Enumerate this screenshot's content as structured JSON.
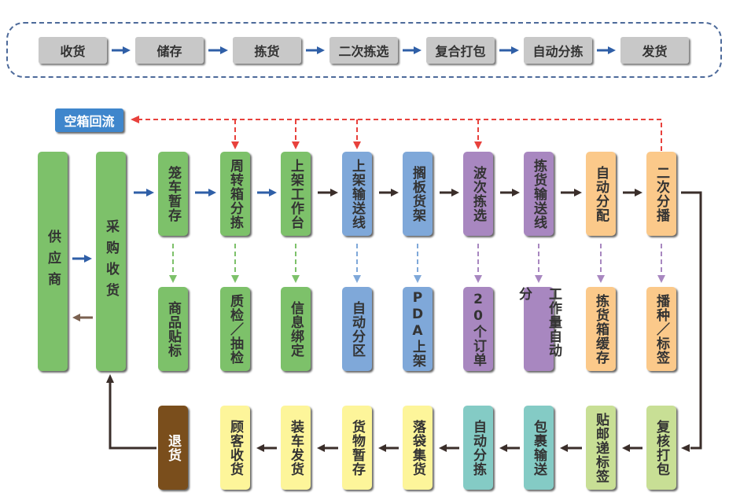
{
  "header_flow": [
    "收货",
    "储存",
    "拣货",
    "二次拣选",
    "复合打包",
    "自动分拣",
    "发货"
  ],
  "empty_box_return": "空箱回流",
  "supplier": "供应商",
  "purchase_receiving": "采购收货",
  "top_row": [
    "笼车暂存",
    "周转箱分拣",
    "上架工作台",
    "上架输送线",
    "搁板货架",
    "波次拣选",
    "拣货输送线",
    "自动分配",
    "二次分播"
  ],
  "middle_row": [
    "商品贴标",
    "质检／抽检",
    "信息绑定",
    "自动分区",
    "PDA上架",
    "20个订单",
    "工作量自动分",
    "拣货箱缓存",
    "播种／标签"
  ],
  "bottom_row": [
    "退货",
    "顾客收货",
    "装车发货",
    "货物暂存",
    "落袋集货",
    "自动分拣",
    "包裹输送",
    "贴邮递标签",
    "复核打包"
  ],
  "colors": {
    "green": "#7dc16a",
    "blue": "#7fa8d9",
    "purple": "#a887c0",
    "orange": "#fbc98a",
    "yellow": "#fdf59a",
    "teal": "#84cbc5",
    "light_green": "#c8df95",
    "brown": "#7a4e1c",
    "empty_return_blue": "#3f86cc",
    "return_arrow_red": "#e8413c",
    "flow_arrow_blue": "#2f5fa7",
    "flow_arrow_dark": "#3a2e2a"
  }
}
